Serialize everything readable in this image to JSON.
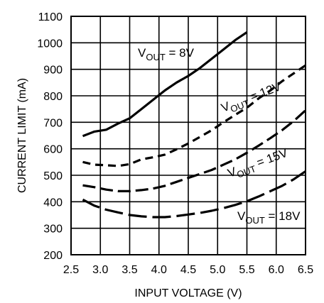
{
  "chart_data": {
    "type": "line",
    "title": "",
    "xlabel": "INPUT VOLTAGE (V)",
    "ylabel": "CURRENT LIMIT (mA)",
    "xlim": [
      2.5,
      6.5
    ],
    "ylim": [
      200,
      1100
    ],
    "x_ticks": [
      "2.5",
      "3.0",
      "3.5",
      "4.0",
      "4.5",
      "5.0",
      "5.5",
      "6.0",
      "6.5"
    ],
    "y_ticks": [
      "200",
      "300",
      "400",
      "500",
      "600",
      "700",
      "800",
      "900",
      "1000",
      "1100"
    ],
    "grid": true,
    "legend": "none",
    "series": [
      {
        "name": "VOUT = 8V",
        "label_main": "V",
        "label_sub": "OUT",
        "label_tail": " = 8V",
        "dash": "solid",
        "x": [
          2.7,
          2.9,
          3.1,
          3.3,
          3.5,
          3.7,
          3.9,
          4.1,
          4.3,
          4.5,
          4.7,
          4.9,
          5.1,
          5.3,
          5.5
        ],
        "y": [
          648,
          665,
          672,
          695,
          715,
          750,
          785,
          820,
          850,
          875,
          905,
          940,
          975,
          1010,
          1040
        ]
      },
      {
        "name": "VOUT = 12V",
        "label_main": "V",
        "label_sub": "OUT",
        "label_tail": " = 12V",
        "dash": "short",
        "x": [
          2.7,
          2.9,
          3.1,
          3.3,
          3.5,
          3.7,
          3.9,
          4.1,
          4.3,
          4.5,
          4.7,
          4.9,
          5.1,
          5.3,
          5.5,
          5.7,
          5.9,
          6.1,
          6.3,
          6.5
        ],
        "y": [
          550,
          540,
          538,
          535,
          542,
          560,
          568,
          578,
          598,
          620,
          645,
          670,
          700,
          728,
          755,
          790,
          820,
          855,
          885,
          915
        ]
      },
      {
        "name": "VOUT = 15V",
        "label_main": "V",
        "label_sub": "OUT",
        "label_tail": " = 15V",
        "dash": "medium",
        "x": [
          2.7,
          2.9,
          3.1,
          3.3,
          3.5,
          3.7,
          3.9,
          4.1,
          4.3,
          4.5,
          4.7,
          4.9,
          5.1,
          5.3,
          5.5,
          5.7,
          5.9,
          6.1,
          6.3,
          6.5
        ],
        "y": [
          462,
          455,
          446,
          440,
          440,
          444,
          450,
          460,
          475,
          490,
          505,
          520,
          540,
          560,
          585,
          612,
          640,
          670,
          705,
          745
        ]
      },
      {
        "name": "VOUT = 18V",
        "label_main": "V",
        "label_sub": "OUT",
        "label_tail": " = 18V",
        "dash": "long",
        "x": [
          2.7,
          2.9,
          3.1,
          3.3,
          3.5,
          3.7,
          3.9,
          4.1,
          4.3,
          4.5,
          4.7,
          4.9,
          5.1,
          5.3,
          5.5,
          5.7,
          5.9,
          6.1,
          6.3,
          6.5
        ],
        "y": [
          408,
          385,
          370,
          360,
          350,
          345,
          342,
          342,
          346,
          352,
          358,
          366,
          376,
          388,
          402,
          420,
          440,
          460,
          485,
          515
        ]
      }
    ]
  }
}
